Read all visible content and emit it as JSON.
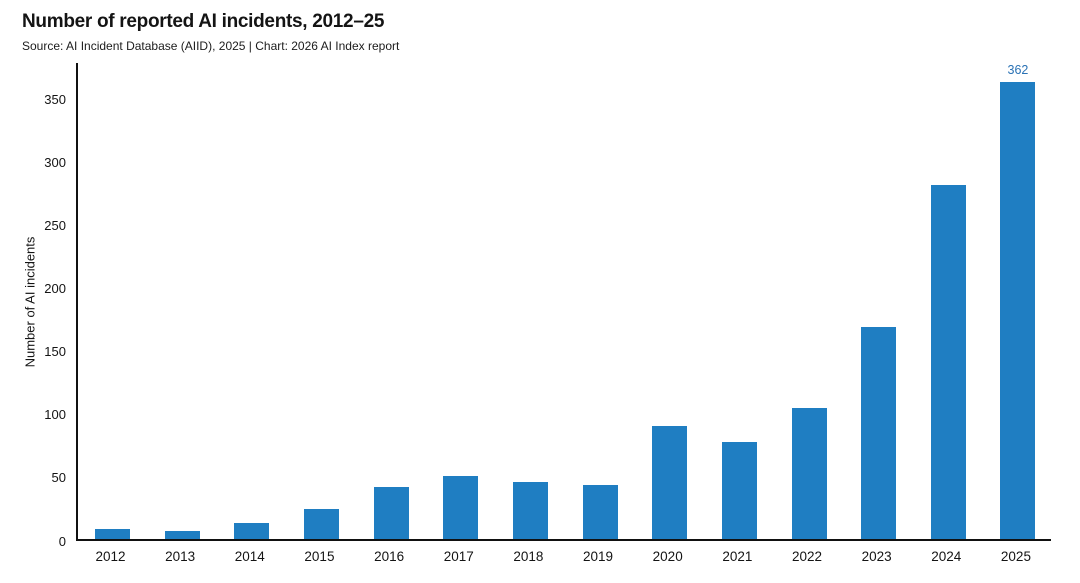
{
  "chart_data": {
    "type": "bar",
    "title": "Number of reported AI incidents, 2012–25",
    "source": "Source: AI Incident Database (AIID), 2025 | Chart: 2026 AI Index report",
    "ylabel": "Number of AI incidents",
    "xlabel": "",
    "categories": [
      "2012",
      "2013",
      "2014",
      "2015",
      "2016",
      "2017",
      "2018",
      "2019",
      "2020",
      "2021",
      "2022",
      "2023",
      "2024",
      "2025"
    ],
    "values": [
      8,
      6,
      13,
      24,
      41,
      50,
      45,
      43,
      90,
      77,
      104,
      168,
      281,
      362
    ],
    "yticks": [
      0,
      50,
      100,
      150,
      200,
      250,
      300,
      350
    ],
    "ylim": [
      0,
      379
    ],
    "grid": false,
    "legend": "none",
    "value_labels": [
      {
        "category": "2025",
        "text": "362"
      }
    ]
  },
  "colors": {
    "bar": "#1f7ec2",
    "value_label": "#2a72b5",
    "axis": "#111111",
    "text": "#141414",
    "background": "#ffffff"
  }
}
